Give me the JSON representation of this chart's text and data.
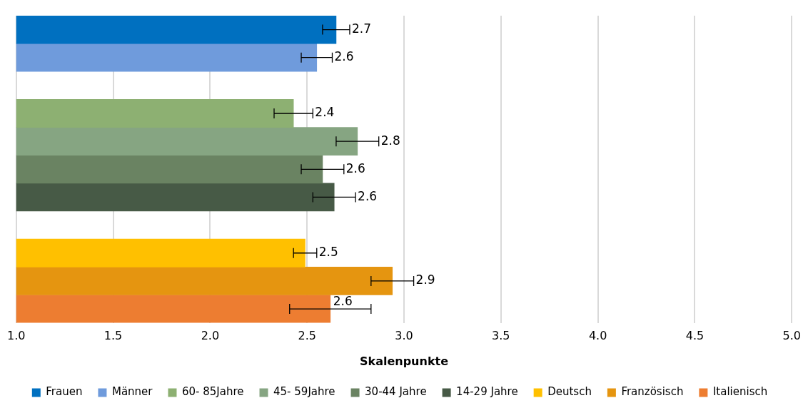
{
  "chart_data": {
    "type": "bar",
    "orientation": "horizontal",
    "xlabel": "Skalenpunkte",
    "categories": [
      null,
      null,
      null,
      null,
      null,
      null,
      null,
      null,
      null,
      null,
      null
    ],
    "series": [
      {
        "name": "Frauen",
        "color": "#0070c0",
        "values": [
          2.65,
          null,
          null,
          null,
          null,
          null,
          null,
          null,
          null,
          null,
          null
        ],
        "errors": [
          0.07,
          null,
          null,
          null,
          null,
          null,
          null,
          null,
          null,
          null,
          null
        ],
        "value_labels": [
          "2.7",
          null,
          null,
          null,
          null,
          null,
          null,
          null,
          null,
          null,
          null
        ]
      },
      {
        "name": "Männer",
        "color": "#6f9bdc",
        "values": [
          null,
          2.55,
          null,
          null,
          null,
          null,
          null,
          null,
          null,
          null,
          null
        ],
        "errors": [
          null,
          0.08,
          null,
          null,
          null,
          null,
          null,
          null,
          null,
          null,
          null
        ],
        "value_labels": [
          null,
          "2.6",
          null,
          null,
          null,
          null,
          null,
          null,
          null,
          null,
          null
        ]
      },
      {
        "name": "60- 85Jahre",
        "color": "#8db072",
        "values": [
          null,
          null,
          null,
          2.43,
          null,
          null,
          null,
          null,
          null,
          null,
          null
        ],
        "errors": [
          null,
          null,
          null,
          0.1,
          null,
          null,
          null,
          null,
          null,
          null,
          null
        ],
        "value_labels": [
          null,
          null,
          null,
          "2.4",
          null,
          null,
          null,
          null,
          null,
          null,
          null
        ]
      },
      {
        "name": "45- 59Jahre",
        "color": "#86a582",
        "values": [
          null,
          null,
          null,
          null,
          2.76,
          null,
          null,
          null,
          null,
          null,
          null
        ],
        "errors": [
          null,
          null,
          null,
          null,
          0.11,
          null,
          null,
          null,
          null,
          null,
          null
        ],
        "value_labels": [
          null,
          null,
          null,
          null,
          "2.8",
          null,
          null,
          null,
          null,
          null,
          null
        ]
      },
      {
        "name": "30-44 Jahre",
        "color": "#6a8362",
        "values": [
          null,
          null,
          null,
          null,
          null,
          2.58,
          null,
          null,
          null,
          null,
          null
        ],
        "errors": [
          null,
          null,
          null,
          null,
          null,
          0.11,
          null,
          null,
          null,
          null,
          null
        ],
        "value_labels": [
          null,
          null,
          null,
          null,
          null,
          "2.6",
          null,
          null,
          null,
          null,
          null
        ]
      },
      {
        "name": "14-29 Jahre",
        "color": "#475a46",
        "values": [
          null,
          null,
          null,
          null,
          null,
          null,
          2.64,
          null,
          null,
          null,
          null
        ],
        "errors": [
          null,
          null,
          null,
          null,
          null,
          null,
          0.11,
          null,
          null,
          null,
          null
        ],
        "value_labels": [
          null,
          null,
          null,
          null,
          null,
          null,
          "2.6",
          null,
          null,
          null,
          null
        ]
      },
      {
        "name": "Deutsch",
        "color": "#ffc000",
        "values": [
          null,
          null,
          null,
          null,
          null,
          null,
          null,
          null,
          2.49,
          null,
          null
        ],
        "errors": [
          null,
          null,
          null,
          null,
          null,
          null,
          null,
          null,
          0.06,
          null,
          null
        ],
        "value_labels": [
          null,
          null,
          null,
          null,
          null,
          null,
          null,
          null,
          "2.5",
          null,
          null
        ]
      },
      {
        "name": "Französisch",
        "color": "#e59510",
        "values": [
          null,
          null,
          null,
          null,
          null,
          null,
          null,
          null,
          null,
          2.94,
          null
        ],
        "errors": [
          null,
          null,
          null,
          null,
          null,
          null,
          null,
          null,
          null,
          0.11,
          null
        ],
        "value_labels": [
          null,
          null,
          null,
          null,
          null,
          null,
          null,
          null,
          null,
          "2.9",
          null
        ]
      },
      {
        "name": "Italienisch",
        "color": "#ed7d31",
        "values": [
          null,
          null,
          null,
          null,
          null,
          null,
          null,
          null,
          null,
          null,
          2.62
        ],
        "errors": [
          null,
          null,
          null,
          null,
          null,
          null,
          null,
          null,
          null,
          null,
          0.21
        ],
        "value_labels": [
          null,
          null,
          null,
          null,
          null,
          null,
          null,
          null,
          null,
          null,
          "2.6"
        ]
      }
    ],
    "xlim": [
      1.0,
      5.0
    ],
    "xticks": [
      {
        "value": 1,
        "label": "1.0"
      },
      {
        "value": 1.5,
        "label": "1.5"
      },
      {
        "value": 2,
        "label": "2.0"
      },
      {
        "value": 2.5,
        "label": "2.5"
      },
      {
        "value": 3,
        "label": "3.0"
      },
      {
        "value": 3.5,
        "label": "3.5"
      },
      {
        "value": 4,
        "label": "4.0"
      },
      {
        "value": 4.5,
        "label": "4.5"
      },
      {
        "value": 5,
        "label": "5.0"
      }
    ],
    "grid": "x",
    "legend": "bottom",
    "tick_labels": "x"
  }
}
